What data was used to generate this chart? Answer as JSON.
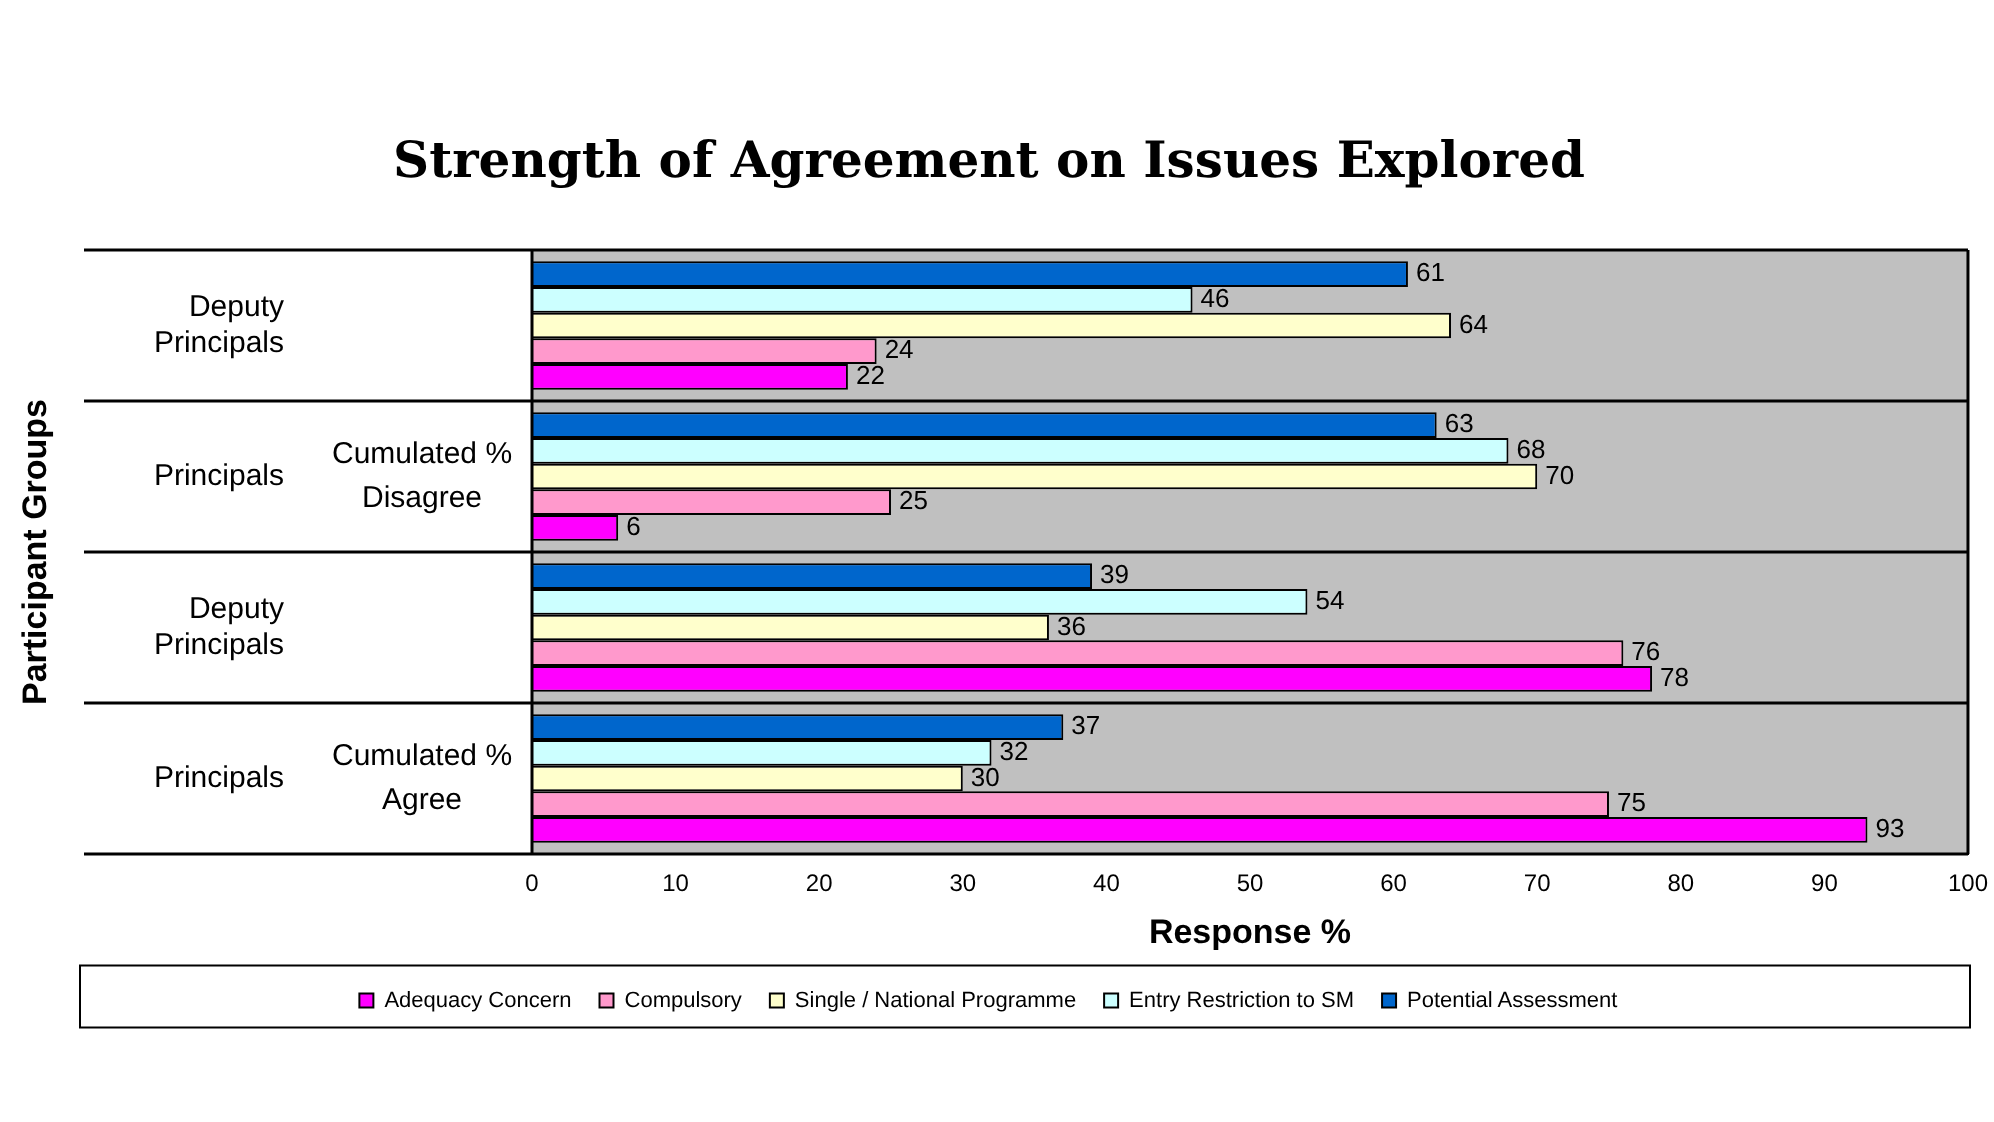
{
  "chart_data": {
    "type": "bar",
    "orientation": "horizontal",
    "title": "Strength of Agreement on Issues Explored",
    "xlabel": "Response %",
    "ylabel": "Participant Groups",
    "categories": [
      "Deputy Principals",
      "Principals",
      "Deputy Principals",
      "Principals"
    ],
    "annotations": [
      "Cumulated % Disagree",
      "Cumulated % Agree"
    ],
    "series": [
      {
        "name": "Adequacy Concern",
        "color": "#ff00ff",
        "values": [
          22,
          6,
          78,
          93
        ]
      },
      {
        "name": "Compulsory",
        "color": "#ff99cc",
        "values": [
          24,
          25,
          76,
          75
        ]
      },
      {
        "name": "Single / National Programme",
        "color": "#ffffcc",
        "values": [
          64,
          70,
          36,
          30
        ]
      },
      {
        "name": "Entry Restriction to SM",
        "color": "#ccffff",
        "values": [
          46,
          68,
          54,
          32
        ]
      },
      {
        "name": "Potential Assessment",
        "color": "#0066cc",
        "values": [
          61,
          63,
          39,
          37
        ]
      }
    ],
    "xlim": [
      0,
      100
    ],
    "xticks": [
      0,
      10,
      20,
      30,
      40,
      50,
      60,
      70,
      80,
      90,
      100
    ],
    "data_labels": true,
    "grid": false,
    "legend": "bottom"
  }
}
